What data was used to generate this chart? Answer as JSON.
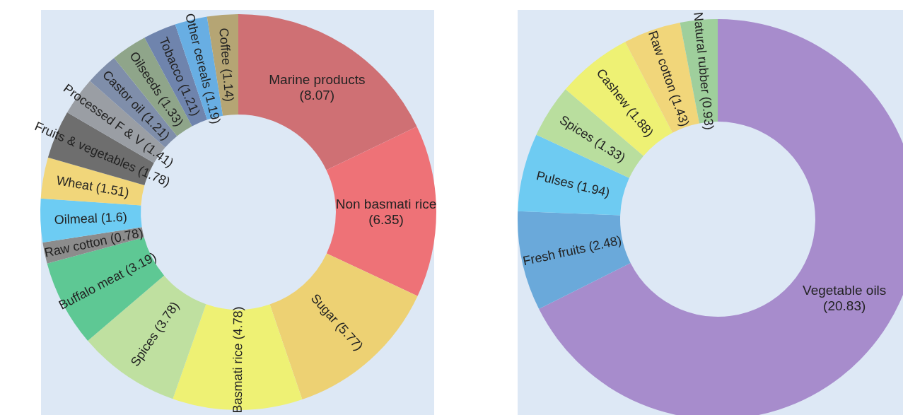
{
  "chart_data": [
    {
      "type": "donut",
      "categories": [
        "Marine products",
        "Non basmati rice",
        "Sugar",
        "Basmati rice",
        "Spices",
        "Buffalo meat",
        "Raw cotton",
        "Oilmeal",
        "Wheat",
        "Fruits & vegetables",
        "Processed F & V",
        "Castor oil",
        "Oilseeds",
        "Tobacco",
        "Other cereals",
        "Coffee"
      ],
      "values": [
        8.07,
        6.35,
        5.77,
        4.78,
        3.78,
        3.19,
        0.78,
        1.6,
        1.51,
        1.78,
        1.41,
        1.21,
        1.33,
        1.21,
        1.19,
        1.14
      ],
      "colors": [
        "#cf7074",
        "#ee7277",
        "#edd173",
        "#eef174",
        "#bfe0a0",
        "#5ec894",
        "#8c8c8c",
        "#6dccf3",
        "#f1d67a",
        "#6e6e6e",
        "#9a9ea4",
        "#7f8eaa",
        "#8fa58a",
        "#6f84ad",
        "#68aee3",
        "#b5a574"
      ],
      "value_labels": [
        "(8.07)",
        "(6.35)",
        "(5.77)",
        "(4.78)",
        "(3.78)",
        "(3.19)",
        "(0.78)",
        "(1.6)",
        "(1.51)",
        "(1.78)",
        "(1.41)",
        "(1.21)",
        "(1.33)",
        "(1.21)",
        "(1.19)",
        "(1.14)"
      ]
    },
    {
      "type": "donut",
      "categories": [
        "Vegetable oils",
        "Fresh fruits",
        "Pulses",
        "Spices",
        "Cashew",
        "Raw cotton",
        "Natural rubber"
      ],
      "values": [
        20.83,
        2.48,
        1.94,
        1.33,
        1.88,
        1.43,
        0.93
      ],
      "colors": [
        "#a78ccc",
        "#6aa9da",
        "#6ecbf2",
        "#b9de9e",
        "#eef174",
        "#f1d67a",
        "#9fcf9c"
      ],
      "value_labels": [
        "(20.83)",
        "(2.48)",
        "(1.94)",
        "(1.33)",
        "(1.88)",
        "(1.43)",
        "(0.93)"
      ]
    }
  ]
}
